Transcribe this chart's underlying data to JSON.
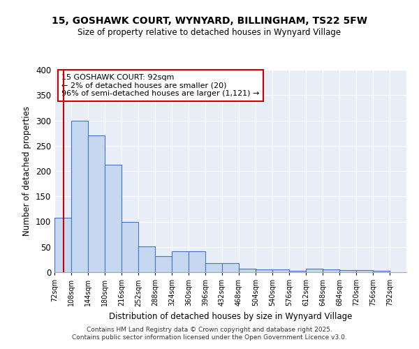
{
  "title1": "15, GOSHAWK COURT, WYNYARD, BILLINGHAM, TS22 5FW",
  "title2": "Size of property relative to detached houses in Wynyard Village",
  "xlabel": "Distribution of detached houses by size in Wynyard Village",
  "ylabel": "Number of detached properties",
  "bin_edges": [
    72,
    108,
    144,
    180,
    216,
    252,
    288,
    324,
    360,
    396,
    432,
    468,
    504,
    540,
    576,
    612,
    648,
    684,
    720,
    756,
    792
  ],
  "bar_heights": [
    108,
    300,
    270,
    213,
    100,
    51,
    32,
    41,
    41,
    18,
    18,
    7,
    5,
    5,
    3,
    7,
    6,
    4,
    4,
    3
  ],
  "bar_color": "#c5d8f0",
  "bar_edge_color": "#4472c4",
  "bar_edge_width": 0.8,
  "property_size": 92,
  "vline_color": "#cc0000",
  "annotation_text": "15 GOSHAWK COURT: 92sqm\n← 2% of detached houses are smaller (20)\n96% of semi-detached houses are larger (1,121) →",
  "annotation_box_color": "#ffffff",
  "annotation_box_edge": "#cc0000",
  "ylim": [
    0,
    400
  ],
  "yticks": [
    0,
    50,
    100,
    150,
    200,
    250,
    300,
    350,
    400
  ],
  "background_color": "#e8eef8",
  "grid_color": "#ffffff",
  "footer1": "Contains HM Land Registry data © Crown copyright and database right 2025.",
  "footer2": "Contains public sector information licensed under the Open Government Licence v3.0."
}
